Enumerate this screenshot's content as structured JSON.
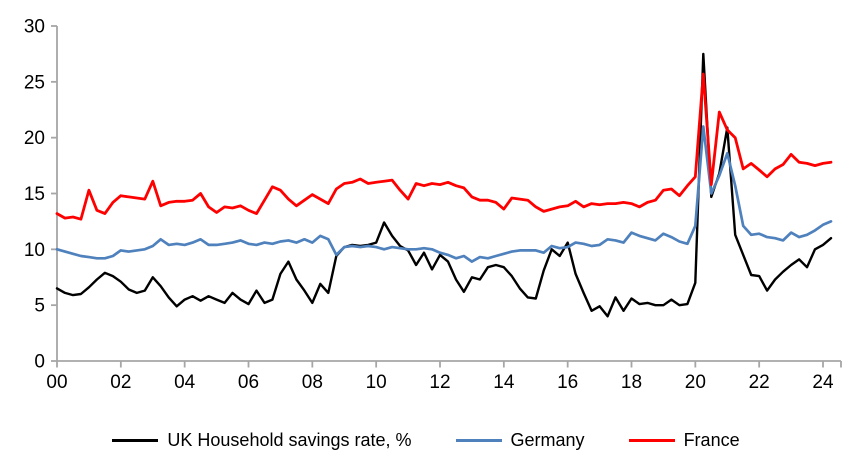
{
  "chart_data": {
    "type": "line",
    "title": "",
    "xlabel": "",
    "ylabel": "",
    "grid": false,
    "legend_position": "bottom",
    "x_axis": {
      "unit": "years (quarterly data)",
      "start": "2000 Q1",
      "end": "2024 Q2",
      "tick_labels": [
        "00",
        "02",
        "04",
        "06",
        "08",
        "10",
        "12",
        "14",
        "16",
        "18",
        "20",
        "22",
        "24"
      ]
    },
    "y_axis": {
      "min": 0,
      "max": 30,
      "step": 5,
      "tick_labels": [
        "0",
        "5",
        "10",
        "15",
        "20",
        "25",
        "30"
      ]
    },
    "axis_color": "#A6A6A6",
    "series": [
      {
        "name": "UK Household savings rate, %",
        "color": "#000000",
        "values": [
          6.5,
          6.1,
          5.9,
          6.0,
          6.6,
          7.3,
          7.9,
          7.6,
          7.1,
          6.4,
          6.1,
          6.3,
          7.5,
          6.7,
          5.7,
          4.9,
          5.5,
          5.8,
          5.4,
          5.8,
          5.5,
          5.2,
          6.1,
          5.5,
          5.1,
          6.3,
          5.2,
          5.5,
          7.8,
          8.9,
          7.3,
          6.3,
          5.2,
          6.9,
          6.1,
          9.4,
          10.2,
          10.4,
          10.3,
          10.4,
          10.6,
          12.4,
          11.2,
          10.3,
          9.9,
          8.6,
          9.7,
          8.2,
          9.5,
          8.9,
          7.3,
          6.2,
          7.5,
          7.3,
          8.4,
          8.6,
          8.4,
          7.6,
          6.5,
          5.7,
          5.6,
          8.1,
          10.0,
          9.4,
          10.6,
          7.8,
          6.1,
          4.5,
          4.9,
          4.0,
          5.7,
          4.5,
          5.6,
          5.1,
          5.2,
          5.0,
          5.0,
          5.5,
          5.0,
          5.1,
          7.0,
          27.5,
          14.7,
          16.8,
          20.9,
          11.3,
          9.5,
          7.7,
          7.6,
          6.3,
          7.3,
          8.0,
          8.6,
          9.1,
          8.4,
          10.0,
          10.4,
          11.0
        ]
      },
      {
        "name": "Germany",
        "color": "#4F81BD",
        "values": [
          10.0,
          9.8,
          9.6,
          9.4,
          9.3,
          9.2,
          9.2,
          9.4,
          9.9,
          9.8,
          9.9,
          10.0,
          10.3,
          10.9,
          10.4,
          10.5,
          10.4,
          10.6,
          10.9,
          10.4,
          10.4,
          10.5,
          10.6,
          10.8,
          10.5,
          10.4,
          10.6,
          10.5,
          10.7,
          10.8,
          10.6,
          10.9,
          10.6,
          11.2,
          10.9,
          9.5,
          10.2,
          10.3,
          10.2,
          10.3,
          10.2,
          10.0,
          10.2,
          10.1,
          10.0,
          10.0,
          10.1,
          10.0,
          9.7,
          9.5,
          9.2,
          9.4,
          8.9,
          9.3,
          9.2,
          9.4,
          9.6,
          9.8,
          9.9,
          9.9,
          9.9,
          9.7,
          10.3,
          10.1,
          10.2,
          10.6,
          10.5,
          10.3,
          10.4,
          10.9,
          10.8,
          10.6,
          11.5,
          11.2,
          11.0,
          10.8,
          11.4,
          11.1,
          10.7,
          10.5,
          12.1,
          21.0,
          15.0,
          16.6,
          18.6,
          15.7,
          12.1,
          11.3,
          11.4,
          11.1,
          11.0,
          10.8,
          11.5,
          11.1,
          11.3,
          11.7,
          12.2,
          12.5
        ]
      },
      {
        "name": "France",
        "color": "#FF0000",
        "values": [
          13.2,
          12.8,
          12.9,
          12.7,
          15.3,
          13.5,
          13.2,
          14.2,
          14.8,
          14.7,
          14.6,
          14.5,
          16.1,
          13.9,
          14.2,
          14.3,
          14.3,
          14.4,
          15.0,
          13.8,
          13.3,
          13.8,
          13.7,
          13.9,
          13.5,
          13.2,
          14.4,
          15.6,
          15.3,
          14.5,
          13.9,
          14.4,
          14.9,
          14.5,
          14.1,
          15.4,
          15.9,
          16.0,
          16.3,
          15.9,
          16.0,
          16.1,
          16.2,
          15.3,
          14.5,
          15.9,
          15.7,
          15.9,
          15.8,
          16.0,
          15.7,
          15.5,
          14.7,
          14.4,
          14.4,
          14.2,
          13.6,
          14.6,
          14.5,
          14.4,
          13.8,
          13.4,
          13.6,
          13.8,
          13.9,
          14.3,
          13.8,
          14.1,
          14.0,
          14.1,
          14.1,
          14.2,
          14.1,
          13.8,
          14.2,
          14.4,
          15.3,
          15.4,
          14.8,
          15.7,
          16.5,
          25.7,
          15.8,
          22.3,
          20.7,
          20.0,
          17.2,
          17.7,
          17.1,
          16.5,
          17.2,
          17.6,
          18.5,
          17.8,
          17.7,
          17.5,
          17.7,
          17.8
        ]
      }
    ]
  }
}
